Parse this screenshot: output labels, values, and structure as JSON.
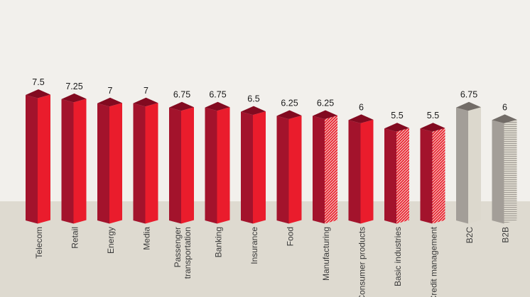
{
  "chart_data": {
    "type": "bar",
    "title": "",
    "xlabel": "",
    "ylabel": "",
    "ylim": [
      0,
      7.5
    ],
    "grid": false,
    "legend": "none",
    "categories": [
      "Telecom",
      "Retail",
      "Energy",
      "Media",
      "Passenger\ntransportation",
      "Banking",
      "Insurance",
      "Food",
      "Manufacturing",
      "Consumer products",
      "Basic industries",
      "Credit management",
      "B2C",
      "B2B"
    ],
    "values": [
      7.5,
      7.25,
      7,
      7,
      6.75,
      6.75,
      6.5,
      6.25,
      6.25,
      6,
      5.5,
      5.5,
      6.75,
      6
    ],
    "value_labels": [
      "7.5",
      "7.25",
      "7",
      "7",
      "6.75",
      "6.75",
      "6.5",
      "6.25",
      "6.25",
      "6",
      "5.5",
      "5.5",
      "6.75",
      "6"
    ],
    "bar_styles": [
      "red",
      "red",
      "red",
      "red",
      "red",
      "red",
      "red",
      "red",
      "red-hatched",
      "red",
      "red-hatched",
      "red-hatched",
      "grey",
      "grey-hatched"
    ]
  },
  "colors": {
    "background": "#f2f0ec",
    "band": "#dedad0",
    "red_front": "#a3132c",
    "red_side": "#ea1c2c",
    "red_top": "#820a20",
    "grey_front": "#a39e98",
    "grey_side": "#dcd8cd",
    "grey_top": "#726c67",
    "hatch_on_red": "#f4d8cf",
    "hatch_on_grey": "#9a958f"
  }
}
